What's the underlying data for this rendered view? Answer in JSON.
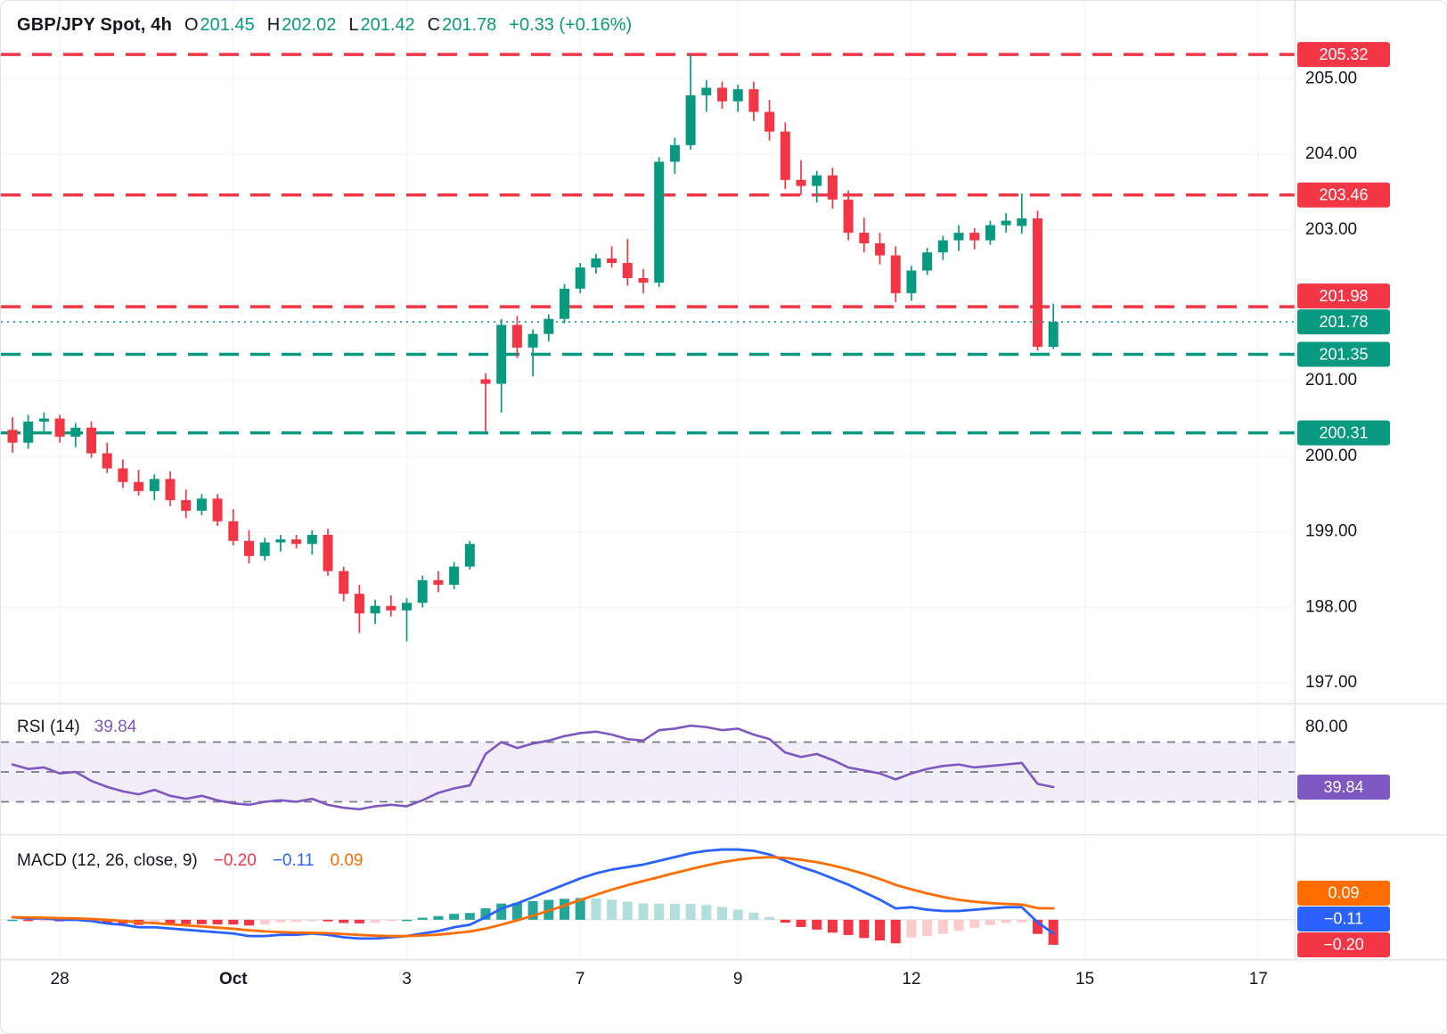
{
  "header": {
    "symbol": "GBP/JPY Spot, 4h",
    "open": {
      "label": "O",
      "value": "201.45"
    },
    "high": {
      "label": "H",
      "value": "202.02"
    },
    "low": {
      "label": "L",
      "value": "201.42"
    },
    "close": {
      "label": "C",
      "value": "201.78"
    },
    "change": "+0.33 (+0.16%)"
  },
  "rsi_header": {
    "title": "RSI (14)",
    "value": "39.84"
  },
  "macd_header": {
    "title": "MACD (12, 26, close, 9)",
    "hist": "−0.20",
    "macd": "−0.11",
    "signal": "0.09"
  },
  "colors": {
    "up": "#089981",
    "down": "#f23645",
    "level_red": "#f23645",
    "level_teal": "#089981",
    "grid": "#f0f3fa",
    "separator": "#e0e3eb",
    "axis_text": "#131722",
    "rsi_line": "#7e57c2",
    "rsi_band_fill": "rgba(126,87,194,0.10)",
    "rsi_dash": "#787b86",
    "macd_line": "#2962ff",
    "signal_line": "#ff6d00",
    "hist_up_grow": "#26a69a",
    "hist_up_fall": "#b2dfdb",
    "hist_dn_grow": "#f23645",
    "hist_dn_fall": "#fccbcd"
  },
  "chart_data": {
    "type": "candlestick",
    "title": "GBP/JPY Spot, 4h",
    "legend_position": "top-left",
    "grid": true,
    "main": {
      "ylabel": "Price",
      "ylim": [
        196.73,
        206.03
      ],
      "yticks": [
        197,
        198,
        199,
        200,
        201,
        203,
        204,
        205
      ],
      "grid_yticks": [
        197,
        198,
        199,
        200,
        201,
        202,
        203,
        204,
        205
      ],
      "levels": [
        {
          "value": 205.32,
          "label": "205.32",
          "color": "#f23645"
        },
        {
          "value": 203.46,
          "label": "203.46",
          "color": "#f23645"
        },
        {
          "value": 201.98,
          "label": "201.98",
          "color": "#f23645"
        },
        {
          "value": 201.35,
          "label": "201.35",
          "color": "#089981"
        },
        {
          "value": 200.31,
          "label": "200.31",
          "color": "#089981"
        }
      ],
      "last_price": {
        "value": 201.78,
        "label": "201.78",
        "color": "#089981"
      },
      "candles": [
        [
          200.35,
          200.52,
          200.05,
          200.18
        ],
        [
          200.18,
          200.55,
          200.1,
          200.46
        ],
        [
          200.46,
          200.58,
          200.3,
          200.5
        ],
        [
          200.5,
          200.55,
          200.18,
          200.26
        ],
        [
          200.26,
          200.44,
          200.12,
          200.38
        ],
        [
          200.38,
          200.46,
          199.98,
          200.04
        ],
        [
          200.04,
          200.18,
          199.78,
          199.84
        ],
        [
          199.84,
          199.96,
          199.58,
          199.66
        ],
        [
          199.66,
          199.82,
          199.48,
          199.54
        ],
        [
          199.54,
          199.76,
          199.42,
          199.7
        ],
        [
          199.7,
          199.8,
          199.34,
          199.42
        ],
        [
          199.42,
          199.56,
          199.18,
          199.28
        ],
        [
          199.28,
          199.5,
          199.22,
          199.44
        ],
        [
          199.44,
          199.5,
          199.08,
          199.14
        ],
        [
          199.14,
          199.3,
          198.82,
          198.88
        ],
        [
          198.88,
          199.02,
          198.58,
          198.68
        ],
        [
          198.68,
          198.92,
          198.62,
          198.86
        ],
        [
          198.86,
          198.96,
          198.74,
          198.9
        ],
        [
          198.9,
          198.96,
          198.78,
          198.84
        ],
        [
          198.84,
          199.02,
          198.7,
          198.96
        ],
        [
          198.96,
          199.04,
          198.42,
          198.48
        ],
        [
          198.48,
          198.54,
          198.08,
          198.18
        ],
        [
          198.18,
          198.3,
          197.66,
          197.92
        ],
        [
          197.92,
          198.1,
          197.78,
          198.02
        ],
        [
          198.02,
          198.16,
          197.88,
          197.96
        ],
        [
          197.96,
          198.12,
          197.55,
          198.06
        ],
        [
          198.06,
          198.42,
          198.0,
          198.36
        ],
        [
          198.36,
          198.48,
          198.2,
          198.3
        ],
        [
          198.3,
          198.6,
          198.24,
          198.54
        ],
        [
          198.54,
          198.88,
          198.5,
          198.84
        ],
        [
          201.02,
          201.1,
          200.33,
          200.96
        ],
        [
          200.96,
          201.82,
          200.58,
          201.74
        ],
        [
          201.74,
          201.86,
          201.3,
          201.44
        ],
        [
          201.44,
          201.68,
          201.06,
          201.62
        ],
        [
          201.62,
          201.88,
          201.52,
          201.82
        ],
        [
          201.82,
          202.28,
          201.76,
          202.22
        ],
        [
          202.22,
          202.56,
          202.16,
          202.5
        ],
        [
          202.5,
          202.68,
          202.42,
          202.62
        ],
        [
          202.62,
          202.78,
          202.5,
          202.56
        ],
        [
          202.56,
          202.88,
          202.26,
          202.36
        ],
        [
          202.36,
          202.48,
          202.16,
          202.3
        ],
        [
          202.3,
          203.96,
          202.24,
          203.9
        ],
        [
          203.9,
          204.22,
          203.74,
          204.12
        ],
        [
          204.12,
          205.32,
          204.06,
          204.78
        ],
        [
          204.78,
          204.98,
          204.56,
          204.88
        ],
        [
          204.88,
          204.96,
          204.6,
          204.7
        ],
        [
          204.7,
          204.92,
          204.56,
          204.86
        ],
        [
          204.86,
          204.96,
          204.44,
          204.56
        ],
        [
          204.56,
          204.72,
          204.18,
          204.3
        ],
        [
          204.3,
          204.42,
          203.54,
          203.66
        ],
        [
          203.66,
          203.92,
          203.46,
          203.58
        ],
        [
          203.58,
          203.78,
          203.36,
          203.72
        ],
        [
          203.72,
          203.82,
          203.28,
          203.4
        ],
        [
          203.4,
          203.52,
          202.86,
          202.96
        ],
        [
          202.96,
          203.16,
          202.7,
          202.82
        ],
        [
          202.82,
          202.96,
          202.54,
          202.66
        ],
        [
          202.66,
          202.78,
          202.04,
          202.16
        ],
        [
          202.16,
          202.52,
          202.06,
          202.46
        ],
        [
          202.46,
          202.76,
          202.4,
          202.7
        ],
        [
          202.7,
          202.92,
          202.6,
          202.86
        ],
        [
          202.86,
          203.06,
          202.72,
          202.96
        ],
        [
          202.96,
          203.02,
          202.74,
          202.86
        ],
        [
          202.86,
          203.12,
          202.8,
          203.06
        ],
        [
          203.06,
          203.22,
          202.96,
          203.12
        ],
        [
          203.05,
          203.48,
          202.95,
          203.15
        ],
        [
          203.15,
          203.25,
          201.4,
          201.45
        ],
        [
          201.45,
          202.02,
          201.42,
          201.78
        ]
      ]
    },
    "rsi": {
      "title": "RSI (14)",
      "last": "39.84",
      "ylim": [
        10,
        90
      ],
      "bands": [
        30,
        50,
        70
      ],
      "band_fill_range": [
        30,
        70
      ],
      "top_tick": {
        "value": 80,
        "label": "80.00"
      },
      "values": [
        55,
        52,
        53,
        49,
        50,
        44,
        40,
        37,
        35,
        38,
        34,
        32,
        34,
        31,
        29,
        28,
        30,
        31,
        30,
        32,
        28,
        26,
        25,
        27,
        28,
        27,
        31,
        36,
        39,
        41,
        62,
        70,
        66,
        69,
        71,
        74,
        76,
        77,
        75,
        72,
        71,
        78,
        79,
        81,
        80,
        78,
        79,
        75,
        72,
        63,
        60,
        62,
        58,
        53,
        51,
        49,
        45,
        49,
        52,
        54,
        55,
        53,
        54,
        55,
        56,
        42,
        39.84
      ]
    },
    "macd": {
      "title": "MACD (12, 26, close, 9)",
      "ylim": [
        -0.3,
        0.66
      ],
      "macd": [
        0.02,
        0.01,
        0.01,
        0.0,
        0.0,
        -0.01,
        -0.03,
        -0.04,
        -0.06,
        -0.06,
        -0.07,
        -0.08,
        -0.09,
        -0.1,
        -0.11,
        -0.13,
        -0.13,
        -0.12,
        -0.12,
        -0.11,
        -0.12,
        -0.14,
        -0.15,
        -0.15,
        -0.14,
        -0.13,
        -0.11,
        -0.09,
        -0.06,
        -0.04,
        0.02,
        0.09,
        0.13,
        0.18,
        0.23,
        0.28,
        0.33,
        0.37,
        0.4,
        0.42,
        0.44,
        0.47,
        0.5,
        0.53,
        0.55,
        0.56,
        0.56,
        0.55,
        0.52,
        0.47,
        0.42,
        0.38,
        0.33,
        0.28,
        0.22,
        0.16,
        0.09,
        0.1,
        0.08,
        0.07,
        0.07,
        0.08,
        0.09,
        0.1,
        0.1,
        -0.02,
        -0.11
      ],
      "signal": [
        0.02,
        0.018,
        0.016,
        0.013,
        0.011,
        0.006,
        -0.001,
        -0.009,
        -0.019,
        -0.027,
        -0.036,
        -0.045,
        -0.054,
        -0.063,
        -0.072,
        -0.084,
        -0.093,
        -0.099,
        -0.103,
        -0.104,
        -0.107,
        -0.114,
        -0.121,
        -0.127,
        -0.13,
        -0.13,
        -0.126,
        -0.119,
        -0.107,
        -0.094,
        -0.071,
        -0.039,
        -0.005,
        0.032,
        0.072,
        0.113,
        0.157,
        0.199,
        0.24,
        0.276,
        0.309,
        0.341,
        0.373,
        0.404,
        0.433,
        0.459,
        0.479,
        0.493,
        0.499,
        0.493,
        0.478,
        0.459,
        0.433,
        0.402,
        0.366,
        0.325,
        0.278,
        0.242,
        0.21,
        0.182,
        0.159,
        0.144,
        0.133,
        0.126,
        0.121,
        0.093,
        0.09
      ],
      "badges": [
        {
          "text": "0.09",
          "value": 0.09,
          "color": "#ff6d00"
        },
        {
          "text": "−0.11",
          "value": -0.11,
          "color": "#2962ff"
        },
        {
          "text": "−0.20",
          "value": -0.2,
          "color": "#f23645"
        }
      ]
    },
    "x_axis": {
      "labels": [
        {
          "text": "28",
          "i": 3
        },
        {
          "text": "Oct",
          "i": 14,
          "bold": true
        },
        {
          "text": "3",
          "i": 25
        },
        {
          "text": "7",
          "i": 36
        },
        {
          "text": "9",
          "i": 46
        },
        {
          "text": "12",
          "i": 57
        },
        {
          "text": "15",
          "i": 68
        },
        {
          "text": "17",
          "i": 79
        }
      ]
    }
  }
}
